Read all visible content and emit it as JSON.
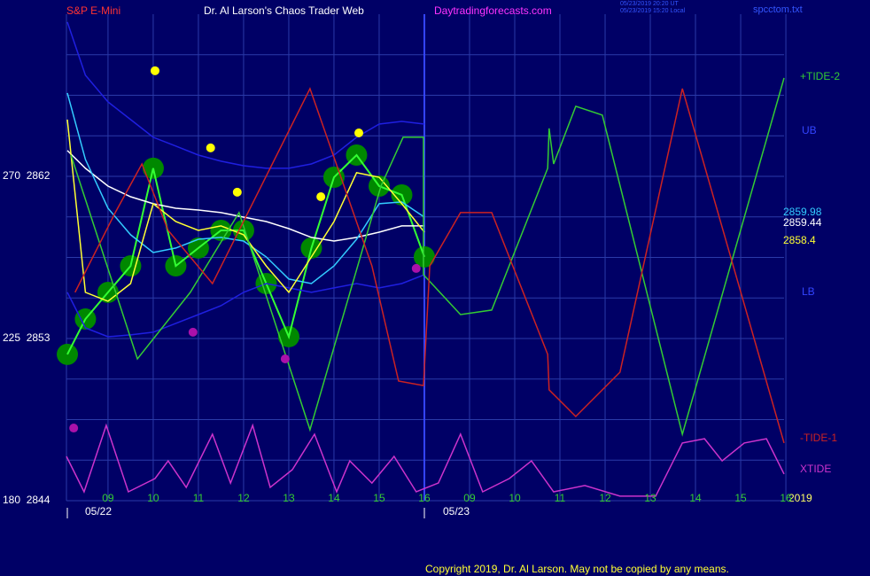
{
  "chart_data": {
    "type": "line",
    "title": "Dr. Al Larson's Chaos Trader Web",
    "instrument": "S&P E-Mini",
    "site": "Daytradingforecasts.com",
    "timestamps": [
      "05/23/2019 20:20 UT",
      "05/23/2019 15:20 Local"
    ],
    "file": "spcctom.txt",
    "copyright": "Copyright 2019, Dr. Al Larson. May not be copied by any means.",
    "year_label": "2019",
    "day_labels": [
      "05/22",
      "05/23"
    ],
    "xlim": [
      0.08,
      15.96
    ],
    "ylim": [
      2844,
      2871
    ],
    "xticks": [
      {
        "value": 1,
        "label": "09"
      },
      {
        "value": 2,
        "label": "10"
      },
      {
        "value": 3,
        "label": "11"
      },
      {
        "value": 4,
        "label": "12"
      },
      {
        "value": 5,
        "label": "13"
      },
      {
        "value": 6,
        "label": "14"
      },
      {
        "value": 7,
        "label": "15"
      },
      {
        "value": 8,
        "label": "16"
      },
      {
        "value": 9,
        "label": "09"
      },
      {
        "value": 10,
        "label": "10"
      },
      {
        "value": 11,
        "label": "11"
      },
      {
        "value": 12,
        "label": "12"
      },
      {
        "value": 13,
        "label": "13"
      },
      {
        "value": 14,
        "label": "14"
      },
      {
        "value": 15,
        "label": "15"
      },
      {
        "value": 16,
        "label": "16"
      }
    ],
    "yticks": [
      {
        "value": 2844,
        "label": "180  2844"
      },
      {
        "value": 2853,
        "label": "225  2853"
      },
      {
        "value": 2862,
        "label": "270  2862"
      }
    ],
    "ygrid": [
      2846.25,
      2848.5,
      2850.75,
      2855.25,
      2857.5,
      2859.75,
      2864.25,
      2866.5,
      2868.75
    ],
    "grid": true,
    "series": [
      {
        "style": "circles",
        "color": "#33ff33",
        "marker_color": "#008800",
        "x": [
          0.1,
          0.5,
          1,
          1.5,
          2,
          2.5,
          3,
          3.5,
          4,
          4.5,
          5,
          5.5,
          6,
          6.5,
          7,
          7.5,
          8
        ],
        "values": [
          2852.12,
          2854.08,
          2855.56,
          2857.03,
          2862.45,
          2857.03,
          2858.02,
          2859.0,
          2859.0,
          2856.05,
          2853.1,
          2858.02,
          2861.95,
          2863.18,
          2861.46,
          2860.97,
          2857.53
        ]
      },
      {
        "name": "UB",
        "style": "line",
        "color": "#1f1fe0",
        "x": [
          0.1,
          0.5,
          1,
          1.5,
          2,
          2.5,
          3,
          3.5,
          4,
          4.5,
          5,
          5.5,
          6,
          6.5,
          7,
          7.5,
          8
        ],
        "values": [
          2870.56,
          2867.61,
          2866.13,
          2865.15,
          2864.17,
          2863.68,
          2863.18,
          2862.84,
          2862.59,
          2862.45,
          2862.45,
          2862.69,
          2863.18,
          2864.17,
          2864.9,
          2865.05,
          2864.9
        ]
      },
      {
        "name": "LB",
        "style": "line",
        "color": "#1f1fe0",
        "x": [
          0.1,
          0.5,
          1,
          1.5,
          2,
          2.5,
          3,
          3.5,
          4,
          4.5,
          5,
          5.5,
          6,
          6.5,
          7,
          7.5,
          8
        ],
        "values": [
          2855.56,
          2853.59,
          2853.1,
          2853.2,
          2853.35,
          2853.84,
          2854.33,
          2854.82,
          2855.56,
          2856.05,
          2855.81,
          2855.56,
          2855.81,
          2856.05,
          2855.81,
          2856.05,
          2856.54
        ]
      },
      {
        "style": "line",
        "color": "#ffffff",
        "end_value": 2859.44,
        "x": [
          0.1,
          0.5,
          1,
          1.5,
          2,
          2.5,
          3,
          3.5,
          4,
          4.5,
          5,
          5.5,
          6,
          6.5,
          7,
          7.5,
          8
        ],
        "values": [
          2863.43,
          2862.45,
          2861.46,
          2860.87,
          2860.48,
          2860.23,
          2860.13,
          2859.99,
          2859.74,
          2859.49,
          2859.1,
          2858.61,
          2858.41,
          2858.61,
          2858.9,
          2859.25,
          2859.25
        ]
      },
      {
        "style": "line",
        "color": "#33ccff",
        "end_value": 2859.98,
        "x": [
          0.1,
          0.5,
          1,
          1.5,
          2,
          2.5,
          3,
          3.5,
          4,
          4.5,
          5,
          5.5,
          6,
          6.5,
          7,
          7.5,
          8
        ],
        "values": [
          2866.63,
          2862.94,
          2860.23,
          2858.76,
          2857.77,
          2858.02,
          2858.51,
          2858.61,
          2858.41,
          2857.53,
          2856.3,
          2856.05,
          2857.03,
          2858.51,
          2860.48,
          2860.58,
          2859.74
        ]
      },
      {
        "style": "line",
        "color": "#ffff33",
        "end_value": 2858.4,
        "x": [
          0.1,
          0.5,
          1,
          1.5,
          2,
          2.5,
          3,
          3.5,
          4,
          4.5,
          5,
          5.5,
          6,
          6.5,
          7,
          7.5,
          8
        ],
        "values": [
          2865.15,
          2855.56,
          2855.07,
          2856.05,
          2860.48,
          2859.49,
          2859.0,
          2859.25,
          2858.76,
          2857.03,
          2855.56,
          2857.53,
          2859.49,
          2862.2,
          2861.95,
          2860.48,
          2858.9
        ]
      },
      {
        "name": "+TIDE-2",
        "style": "line",
        "color": "#33cc33",
        "x": [
          0.18,
          1.65,
          2.82,
          3.9,
          5.47,
          7.04,
          7.53,
          7.98,
          7.98,
          8.8,
          9.49,
          10.73,
          10.76,
          10.86,
          11.35,
          11.94,
          13.71,
          15.96
        ],
        "values": [
          2863.18,
          2851.87,
          2855.56,
          2859.99,
          2847.94,
          2861.46,
          2864.17,
          2864.17,
          2856.54,
          2854.33,
          2854.58,
          2862.45,
          2864.66,
          2862.69,
          2865.89,
          2865.4,
          2847.69,
          2867.46
        ]
      },
      {
        "name": "-TIDE-1",
        "style": "line",
        "color": "#cc2222",
        "x": [
          0.27,
          1.16,
          1.75,
          2.33,
          3.31,
          5.47,
          6.84,
          7.43,
          7.98,
          8.12,
          8.8,
          9.49,
          10.73,
          10.76,
          11.35,
          12.33,
          13.71,
          15.96
        ],
        "values": [
          2855.56,
          2859.99,
          2862.69,
          2859.0,
          2856.05,
          2866.87,
          2857.03,
          2850.64,
          2850.39,
          2857.03,
          2859.99,
          2859.99,
          2852.12,
          2850.15,
          2848.67,
          2851.13,
          2866.87,
          2847.2
        ]
      },
      {
        "name": "XTIDE",
        "style": "line",
        "color": "#cc33cc",
        "x": [
          0.08,
          0.47,
          0.96,
          1.45,
          2.04,
          2.33,
          2.73,
          3.31,
          3.71,
          4.2,
          4.59,
          5.08,
          5.57,
          6.06,
          6.35,
          6.84,
          7.33,
          7.82,
          8.31,
          8.8,
          9.29,
          9.88,
          10.37,
          10.86,
          11.55,
          12.33,
          13.12,
          13.71,
          14.2,
          14.59,
          15.08,
          15.57,
          15.96
        ],
        "values": [
          2846.46,
          2844.49,
          2848.18,
          2844.49,
          2845.23,
          2846.21,
          2844.74,
          2847.69,
          2844.98,
          2848.18,
          2844.74,
          2845.72,
          2847.69,
          2844.49,
          2846.21,
          2844.98,
          2846.46,
          2844.49,
          2844.98,
          2847.69,
          2844.49,
          2845.23,
          2846.21,
          2844.49,
          2844.84,
          2844.25,
          2844.25,
          2847.2,
          2847.44,
          2846.21,
          2847.2,
          2847.44,
          2845.48
        ]
      },
      {
        "style": "dots",
        "color": "#ffff00",
        "x": [
          2.04,
          3.27,
          3.86,
          5.71,
          6.55
        ],
        "values": [
          2867.86,
          2863.58,
          2861.12,
          2860.87,
          2864.41
        ]
      },
      {
        "style": "dots",
        "color": "#aa11aa",
        "x": [
          0.24,
          2.88,
          4.92,
          7.82
        ],
        "values": [
          2848.03,
          2853.35,
          2851.87,
          2856.89
        ]
      }
    ]
  }
}
